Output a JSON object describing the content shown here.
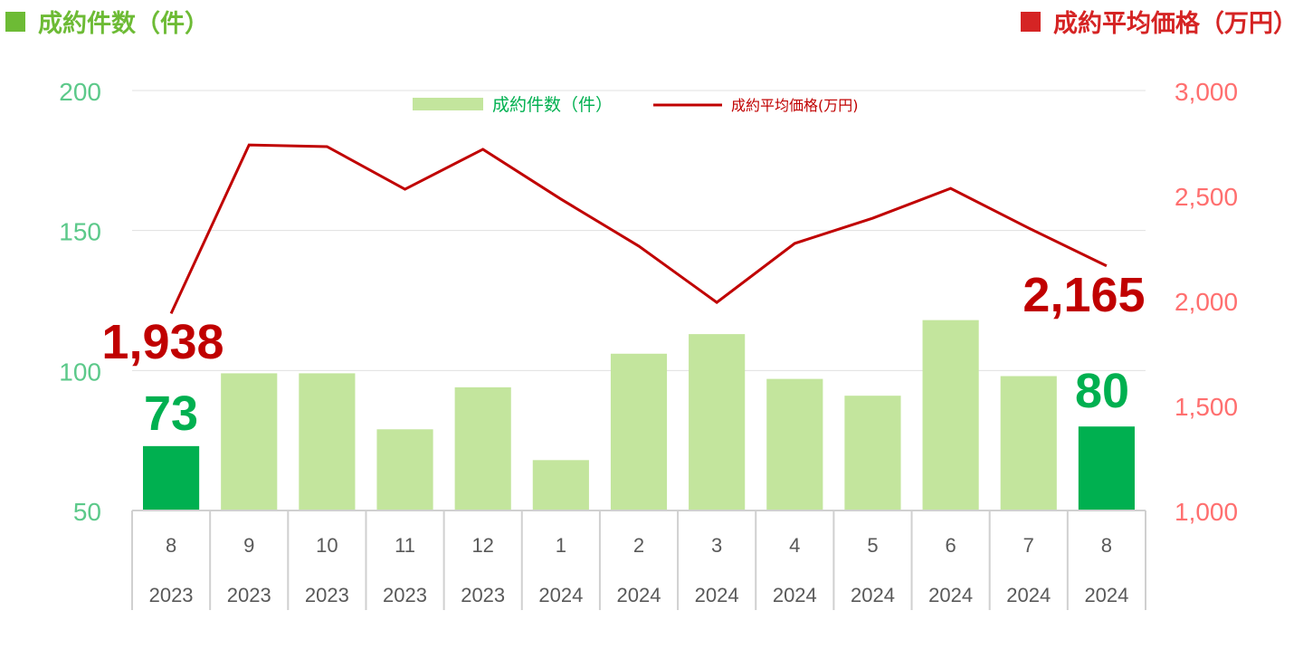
{
  "header": {
    "left_title": "成約件数（件）",
    "right_title": "成約平均価格（万円）",
    "left_color": "#6DBB35",
    "right_color": "#D52424"
  },
  "chart_data": {
    "type": "bar+line",
    "categories": [
      "8",
      "9",
      "10",
      "11",
      "12",
      "1",
      "2",
      "3",
      "4",
      "5",
      "6",
      "7",
      "8"
    ],
    "years": [
      "2023",
      "2023",
      "2023",
      "2023",
      "2023",
      "2024",
      "2024",
      "2024",
      "2024",
      "2024",
      "2024",
      "2024",
      "2024"
    ],
    "y_left": {
      "range": [
        50,
        200
      ],
      "ticks": [
        "50",
        "100",
        "150",
        "200"
      ],
      "color": "#5CC98A"
    },
    "y_right": {
      "range": [
        1000,
        3000
      ],
      "ticks": [
        "1,000",
        "1,500",
        "2,000",
        "2,500",
        "3,000"
      ],
      "color": "#FF6F6F"
    },
    "grid": true,
    "legend": {
      "placement": "top-center"
    },
    "series": [
      {
        "name": "成約件数（件）",
        "type": "bar",
        "axis": "left",
        "values": [
          73,
          99,
          99,
          79,
          94,
          68,
          106,
          113,
          97,
          91,
          118,
          98,
          80
        ],
        "color": "#C3E59D",
        "highlight_color": "#00B050"
      },
      {
        "name": "成約平均価格(万円)",
        "type": "line",
        "axis": "right",
        "values": [
          1938,
          2741,
          2733,
          2530,
          2720,
          2483,
          2259,
          1991,
          2272,
          2392,
          2534,
          2345,
          2165
        ],
        "color": "#C00000"
      }
    ],
    "annotations": {
      "first_bar": "73",
      "last_bar": "80",
      "first_line": "1,938",
      "last_line": "2,165"
    }
  }
}
